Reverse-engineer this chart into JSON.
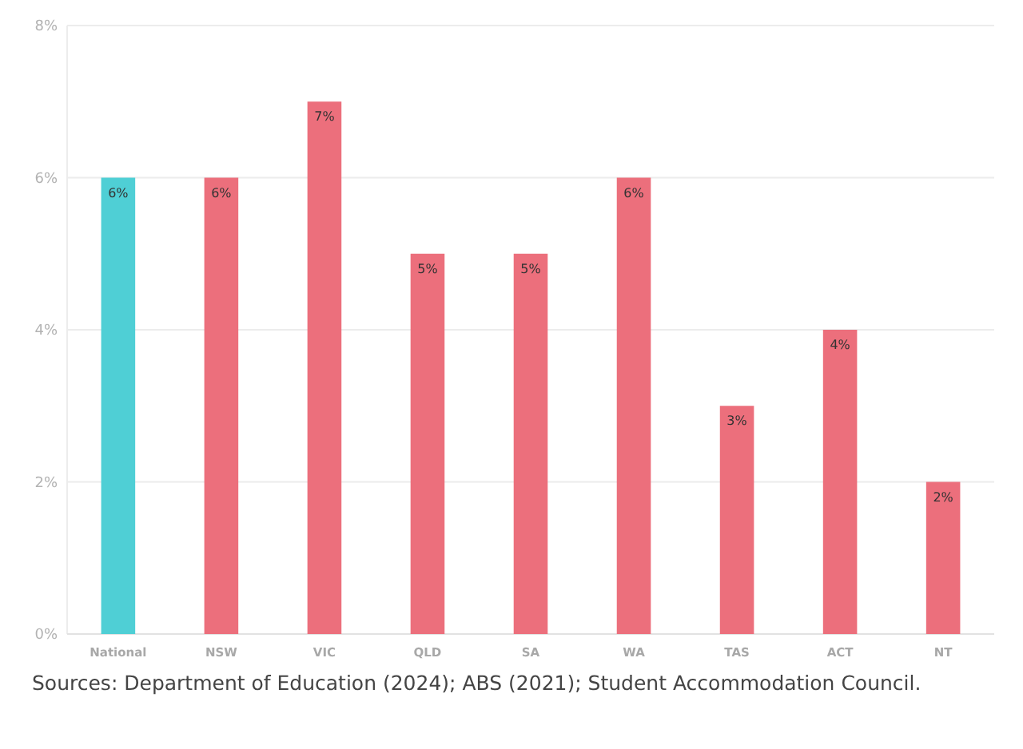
{
  "chart_data": {
    "type": "bar",
    "categories": [
      "National",
      "NSW",
      "VIC",
      "QLD",
      "SA",
      "WA",
      "TAS",
      "ACT",
      "NT"
    ],
    "values": [
      6,
      6,
      7,
      5,
      5,
      6,
      3,
      4,
      2
    ],
    "colors": [
      "#4fcfd5",
      "#ec6f7c",
      "#ec6f7c",
      "#ec6f7c",
      "#ec6f7c",
      "#ec6f7c",
      "#ec6f7c",
      "#ec6f7c",
      "#ec6f7c"
    ],
    "value_labels": [
      "6%",
      "6%",
      "7%",
      "5%",
      "5%",
      "6%",
      "3%",
      "4%",
      "2%"
    ],
    "ylim": [
      0,
      8
    ],
    "yticks": [
      {
        "value": 0,
        "label": "0%"
      },
      {
        "value": 2,
        "label": "2%"
      },
      {
        "value": 4,
        "label": "4%"
      },
      {
        "value": 6,
        "label": "6%"
      },
      {
        "value": 8,
        "label": "8%"
      }
    ],
    "grid": "y",
    "annotations": [
      "Sources: Department of Education (2024); ABS (2021); Student Accommodation Council."
    ]
  }
}
